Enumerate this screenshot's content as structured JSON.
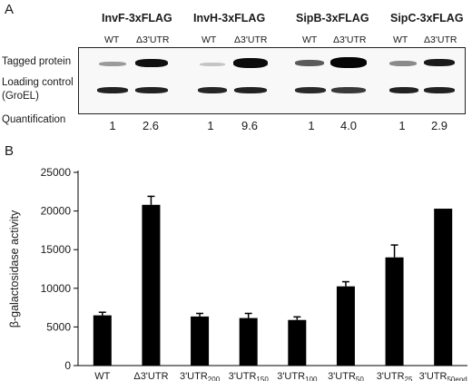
{
  "panel_a": {
    "letter": "A",
    "proteins": [
      "InvF-3xFLAG",
      "InvH-3xFLAG",
      "SipB-3xFLAG",
      "SipC-3xFLAG"
    ],
    "lane_labels": [
      "WT",
      "Δ3'UTR"
    ],
    "row_labels": {
      "tagged": "Tagged protein",
      "loading_line1": "Loading control",
      "loading_line2": "(GroEL)",
      "quantification": "Quantification"
    },
    "quantification": [
      "1",
      "2.6",
      "1",
      "9.6",
      "1",
      "4.0",
      "1",
      "2.9"
    ]
  },
  "panel_b": {
    "letter": "B"
  },
  "chart_data": {
    "type": "bar",
    "ylabel": "β-galactosidase activity",
    "ylim": [
      0,
      25000
    ],
    "yticks": [
      0,
      5000,
      10000,
      15000,
      20000,
      25000
    ],
    "categories": [
      {
        "base": "WT",
        "sub": ""
      },
      {
        "base": "Δ3'UTR",
        "sub": ""
      },
      {
        "base": "3'UTR",
        "sub": "200"
      },
      {
        "base": "3'UTR",
        "sub": "150"
      },
      {
        "base": "3'UTR",
        "sub": "100"
      },
      {
        "base": "3'UTR",
        "sub": "50"
      },
      {
        "base": "3'UTR",
        "sub": "25"
      },
      {
        "base": "3'UTR",
        "sub": "50end"
      }
    ],
    "values": [
      6500,
      20800,
      6350,
      6150,
      5900,
      10250,
      14000,
      20300
    ],
    "errors": [
      400,
      1100,
      400,
      600,
      400,
      600,
      1600,
      0
    ],
    "colors": {
      "bar": "#000000",
      "axis": "#000000"
    }
  }
}
